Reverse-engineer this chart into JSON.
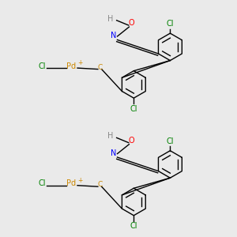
{
  "background_color": "#eaeaea",
  "bond_color": "#000000",
  "lw": 1.0,
  "unit_centers": [
    0.76,
    0.26
  ],
  "colors": {
    "H": "#888888",
    "O": "#ff0000",
    "N": "#0000ff",
    "Pd": "#cc8800",
    "plus": "#cc8800",
    "C": "#cc8800",
    "Cl": "#008000"
  },
  "fs": 7.0
}
